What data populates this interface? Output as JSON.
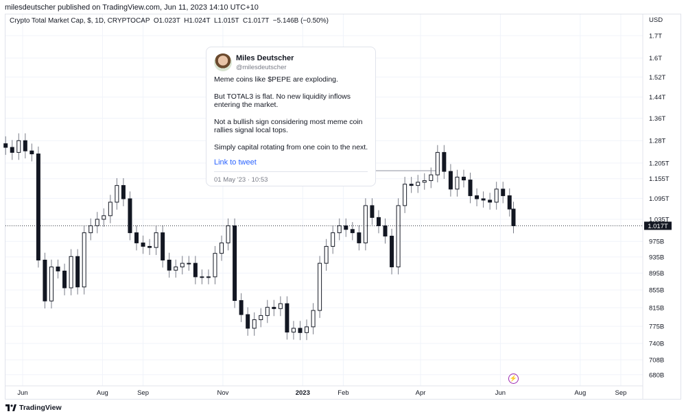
{
  "publisher_line": "milesdeutscher published on TradingView.com, Jun 11, 2023 14:10 UTC+10",
  "legend": {
    "symbol": "Crypto Total Market Cap, $, 1D, CRYPTOCAP",
    "open": "O1.023T",
    "high": "H1.024T",
    "low": "L1.015T",
    "close": "C1.017T",
    "change": "−5.146B (−0.50%)"
  },
  "tweet": {
    "name": "Miles Deutscher",
    "handle": "@milesdeutscher",
    "paragraphs": [
      "Meme coins like $PEPE are exploding.",
      "But TOTAL3 is flat. No new liquidity inflows entering the market.",
      "Not a bullish sign considering most meme coin rallies signal local tops.",
      "Simply capital rotating from one coin to the next."
    ],
    "link": "Link to tweet",
    "date": "01 May '23 · 10:53"
  },
  "branding": {
    "logo_text": "TradingView"
  },
  "icons": {
    "alert": "lightning-icon",
    "logo": "tradingview-logo-icon"
  },
  "colors": {
    "candle": "#131722",
    "wick": "#787b86",
    "price_label_bg": "#131722",
    "alert": "#9c27b0",
    "link": "#2962ff"
  },
  "chart_data": {
    "type": "candlestick",
    "interval": "1D",
    "scale": "log",
    "currency_label": "USD",
    "last_price_label": "1.017T",
    "last_price": 1017,
    "unit": "USD billions",
    "y_ticks": [
      {
        "label": "1.7T",
        "value": 1700
      },
      {
        "label": "1.6T",
        "value": 1600
      },
      {
        "label": "1.52T",
        "value": 1520
      },
      {
        "label": "1.44T",
        "value": 1440
      },
      {
        "label": "1.36T",
        "value": 1360
      },
      {
        "label": "1.28T",
        "value": 1280
      },
      {
        "label": "1.205T",
        "value": 1205
      },
      {
        "label": "1.155T",
        "value": 1155
      },
      {
        "label": "1.095T",
        "value": 1095
      },
      {
        "label": "1.035T",
        "value": 1035
      },
      {
        "label": "975B",
        "value": 975
      },
      {
        "label": "935B",
        "value": 935
      },
      {
        "label": "895B",
        "value": 895
      },
      {
        "label": "855B",
        "value": 855
      },
      {
        "label": "815B",
        "value": 815
      },
      {
        "label": "775B",
        "value": 775
      },
      {
        "label": "740B",
        "value": 740
      },
      {
        "label": "708B",
        "value": 708
      },
      {
        "label": "680B",
        "value": 680
      }
    ],
    "x_ticks": [
      {
        "label": "Jun",
        "date": "2022-06-01"
      },
      {
        "label": "Aug",
        "date": "2022-08-01"
      },
      {
        "label": "Sep",
        "date": "2022-09-01"
      },
      {
        "label": "Nov",
        "date": "2022-11-01"
      },
      {
        "label": "2023",
        "date": "2023-01-01",
        "bold": true
      },
      {
        "label": "Feb",
        "date": "2023-02-01"
      },
      {
        "label": "Apr",
        "date": "2023-04-01"
      },
      {
        "label": "Jun",
        "date": "2023-06-01"
      },
      {
        "label": "Aug",
        "date": "2023-08-01"
      },
      {
        "label": "Sep",
        "date": "2023-09-01"
      }
    ],
    "horizontal_line": {
      "value": 1180,
      "from": "2023-02-24",
      "to": "2023-04-16"
    },
    "dates": [
      "2022-05-19",
      "2022-05-24",
      "2022-05-29",
      "2022-06-03",
      "2022-06-08",
      "2022-06-13",
      "2022-06-18",
      "2022-06-23",
      "2022-06-28",
      "2022-07-03",
      "2022-07-08",
      "2022-07-13",
      "2022-07-18",
      "2022-07-23",
      "2022-07-28",
      "2022-08-02",
      "2022-08-07",
      "2022-08-12",
      "2022-08-17",
      "2022-08-22",
      "2022-08-27",
      "2022-09-01",
      "2022-09-06",
      "2022-09-11",
      "2022-09-16",
      "2022-09-21",
      "2022-09-26",
      "2022-10-01",
      "2022-10-06",
      "2022-10-11",
      "2022-10-16",
      "2022-10-21",
      "2022-10-26",
      "2022-10-31",
      "2022-11-05",
      "2022-11-10",
      "2022-11-15",
      "2022-11-20",
      "2022-11-25",
      "2022-11-30",
      "2022-12-05",
      "2022-12-10",
      "2022-12-15",
      "2022-12-20",
      "2022-12-25",
      "2022-12-30",
      "2023-01-04",
      "2023-01-09",
      "2023-01-14",
      "2023-01-19",
      "2023-01-24",
      "2023-01-29",
      "2023-02-03",
      "2023-02-08",
      "2023-02-13",
      "2023-02-18",
      "2023-02-23",
      "2023-02-28",
      "2023-03-05",
      "2023-03-10",
      "2023-03-15",
      "2023-03-20",
      "2023-03-25",
      "2023-03-30",
      "2023-04-04",
      "2023-04-09",
      "2023-04-14",
      "2023-04-19",
      "2023-04-24",
      "2023-04-29",
      "2023-05-04",
      "2023-05-09",
      "2023-05-14",
      "2023-05-19",
      "2023-05-24",
      "2023-05-29",
      "2023-06-03",
      "2023-06-08",
      "2023-06-11"
    ],
    "close": [
      1257,
      1240,
      1280,
      1245,
      1235,
      927,
      830,
      910,
      900,
      860,
      936,
      862,
      998,
      1017,
      1035,
      1045,
      1084,
      1134,
      1094,
      998,
      971,
      962,
      959,
      998,
      927,
      902,
      910,
      919,
      919,
      886,
      886,
      886,
      944,
      971,
      1017,
      831,
      800,
      771,
      789,
      798,
      816,
      813,
      824,
      763,
      771,
      762,
      774,
      809,
      919,
      962,
      998,
      1017,
      1007,
      998,
      971,
      1074,
      1040,
      1017,
      989,
      910,
      1074,
      1138,
      1134,
      1144,
      1149,
      1167,
      1240,
      1178,
      1123,
      1160,
      1151,
      1103,
      1094,
      1090,
      1084,
      1123,
      1103,
      1064,
      1017
    ]
  }
}
